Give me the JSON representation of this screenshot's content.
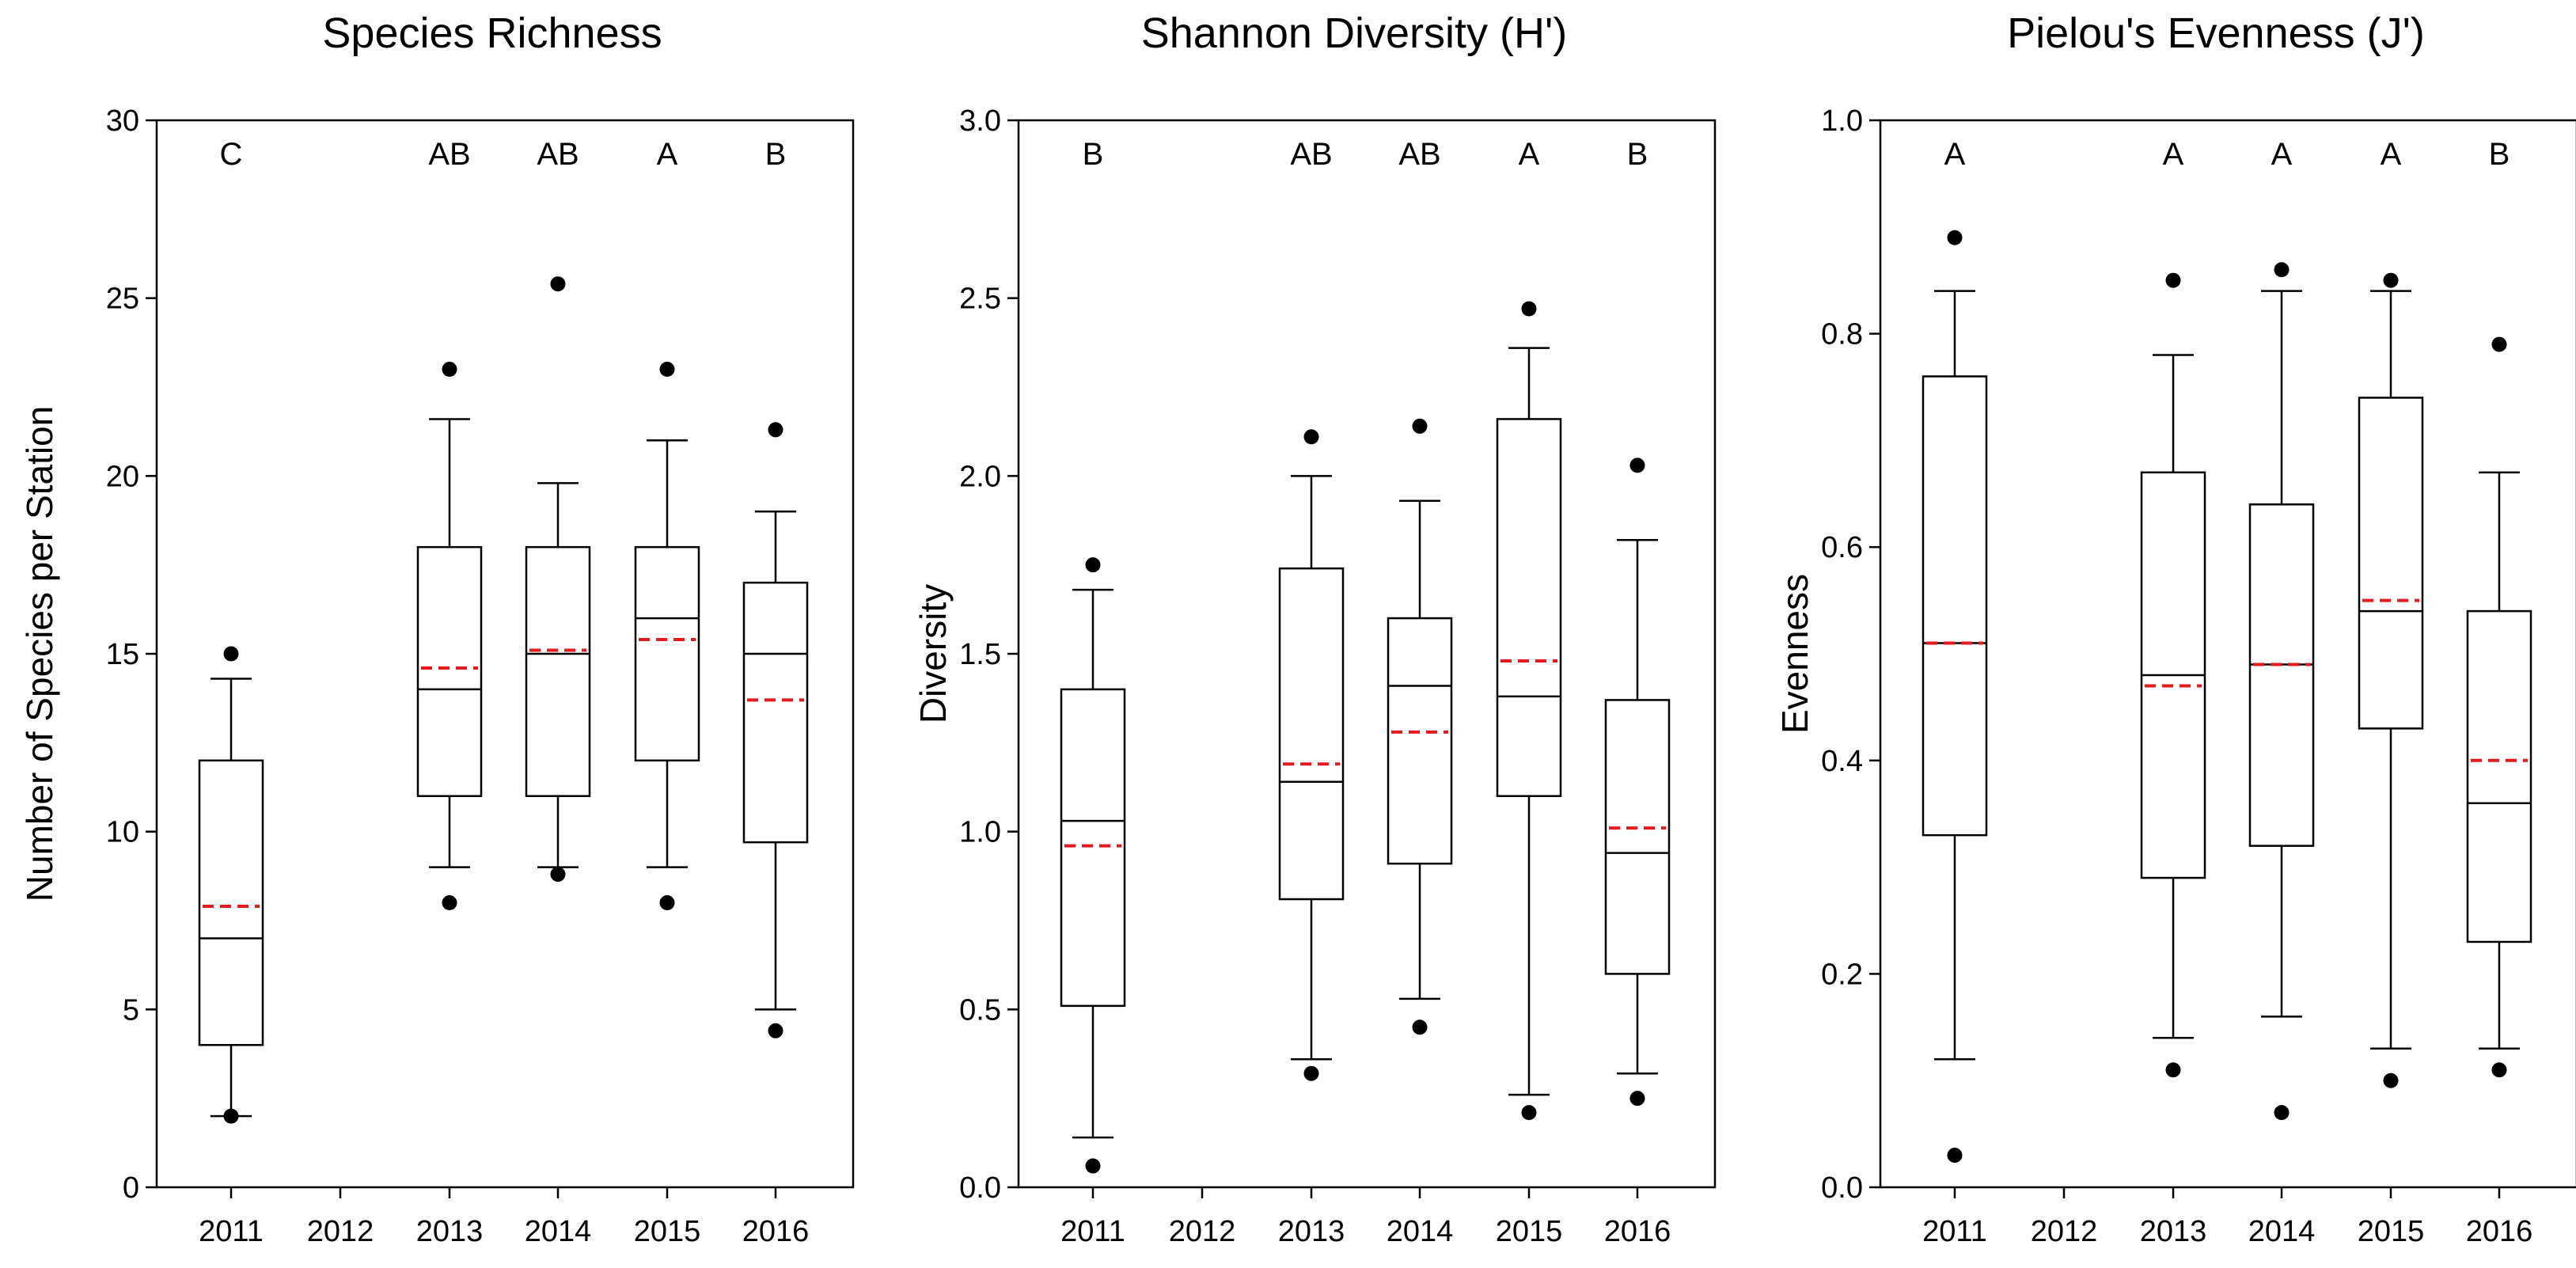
{
  "colors": {
    "mean_line": "#e8191a",
    "box_stroke": "#000000",
    "outlier": "#000000"
  },
  "chart_data": [
    {
      "type": "box",
      "title": "Species Richness",
      "xlabel": "",
      "ylabel": "Number of Species per Station",
      "ylim": [
        0,
        30
      ],
      "yticks": [
        "0",
        "5",
        "10",
        "15",
        "20",
        "25",
        "30"
      ],
      "categories": [
        "2011",
        "2012",
        "2013",
        "2014",
        "2015",
        "2016"
      ],
      "letters": [
        "C",
        "",
        "AB",
        "AB",
        "A",
        "B"
      ],
      "boxes": [
        {
          "year": "2011",
          "whisker_low": 2,
          "q1": 4,
          "median": 7,
          "q3": 12,
          "whisker_high": 14.3,
          "mean": 7.9,
          "outliers": [
            2,
            15
          ]
        },
        null,
        {
          "year": "2013",
          "whisker_low": 9,
          "q1": 11,
          "median": 14,
          "q3": 18,
          "whisker_high": 21.6,
          "mean": 14.6,
          "outliers": [
            8,
            23
          ]
        },
        {
          "year": "2014",
          "whisker_low": 9,
          "q1": 11,
          "median": 15,
          "q3": 18,
          "whisker_high": 19.8,
          "mean": 15.1,
          "outliers": [
            8.8,
            25.4
          ]
        },
        {
          "year": "2015",
          "whisker_low": 9,
          "q1": 12,
          "median": 16,
          "q3": 18,
          "whisker_high": 21,
          "mean": 15.4,
          "outliers": [
            8,
            23
          ]
        },
        {
          "year": "2016",
          "whisker_low": 5,
          "q1": 9.7,
          "median": 15,
          "q3": 17,
          "whisker_high": 19,
          "mean": 13.7,
          "outliers": [
            4.4,
            21.3
          ]
        }
      ],
      "grid": false,
      "legend": "none"
    },
    {
      "type": "box",
      "title": "Shannon Diversity (H')",
      "xlabel": "",
      "ylabel": "Diversity",
      "ylim": [
        0,
        3
      ],
      "yticks": [
        "0.0",
        "0.5",
        "1.0",
        "1.5",
        "2.0",
        "2.5",
        "3.0"
      ],
      "categories": [
        "2011",
        "2012",
        "2013",
        "2014",
        "2015",
        "2016"
      ],
      "letters": [
        "B",
        "",
        "AB",
        "AB",
        "A",
        "B"
      ],
      "boxes": [
        {
          "year": "2011",
          "whisker_low": 0.14,
          "q1": 0.51,
          "median": 1.03,
          "q3": 1.4,
          "whisker_high": 1.68,
          "mean": 0.96,
          "outliers": [
            0.06,
            1.75
          ]
        },
        null,
        {
          "year": "2013",
          "whisker_low": 0.36,
          "q1": 0.81,
          "median": 1.14,
          "q3": 1.74,
          "whisker_high": 2.0,
          "mean": 1.19,
          "outliers": [
            0.32,
            2.11
          ]
        },
        {
          "year": "2014",
          "whisker_low": 0.53,
          "q1": 0.91,
          "median": 1.41,
          "q3": 1.6,
          "whisker_high": 1.93,
          "mean": 1.28,
          "outliers": [
            0.45,
            2.14
          ]
        },
        {
          "year": "2015",
          "whisker_low": 0.26,
          "q1": 1.1,
          "median": 1.38,
          "q3": 2.16,
          "whisker_high": 2.36,
          "mean": 1.48,
          "outliers": [
            0.21,
            2.47
          ]
        },
        {
          "year": "2016",
          "whisker_low": 0.32,
          "q1": 0.6,
          "median": 0.94,
          "q3": 1.37,
          "whisker_high": 1.82,
          "mean": 1.01,
          "outliers": [
            0.25,
            2.03
          ]
        }
      ],
      "grid": false,
      "legend": "none"
    },
    {
      "type": "box",
      "title": "Pielou's Evenness (J')",
      "xlabel": "",
      "ylabel": "Evenness",
      "ylim": [
        0,
        1
      ],
      "yticks": [
        "0.0",
        "0.2",
        "0.4",
        "0.6",
        "0.8",
        "1.0"
      ],
      "categories": [
        "2011",
        "2012",
        "2013",
        "2014",
        "2015",
        "2016"
      ],
      "letters": [
        "A",
        "",
        "A",
        "A",
        "A",
        "B"
      ],
      "boxes": [
        {
          "year": "2011",
          "whisker_low": 0.12,
          "q1": 0.33,
          "median": 0.51,
          "q3": 0.76,
          "whisker_high": 0.84,
          "mean": 0.51,
          "outliers": [
            0.03,
            0.89
          ]
        },
        null,
        {
          "year": "2013",
          "whisker_low": 0.14,
          "q1": 0.29,
          "median": 0.48,
          "q3": 0.67,
          "whisker_high": 0.78,
          "mean": 0.47,
          "outliers": [
            0.11,
            0.85
          ]
        },
        {
          "year": "2014",
          "whisker_low": 0.16,
          "q1": 0.32,
          "median": 0.49,
          "q3": 0.64,
          "whisker_high": 0.84,
          "mean": 0.49,
          "outliers": [
            0.07,
            0.86
          ]
        },
        {
          "year": "2015",
          "whisker_low": 0.13,
          "q1": 0.43,
          "median": 0.54,
          "q3": 0.74,
          "whisker_high": 0.84,
          "mean": 0.55,
          "outliers": [
            0.1,
            0.85
          ]
        },
        {
          "year": "2016",
          "whisker_low": 0.13,
          "q1": 0.23,
          "median": 0.36,
          "q3": 0.54,
          "whisker_high": 0.67,
          "mean": 0.4,
          "outliers": [
            0.11,
            0.79
          ]
        }
      ],
      "grid": false,
      "legend": "none"
    }
  ]
}
